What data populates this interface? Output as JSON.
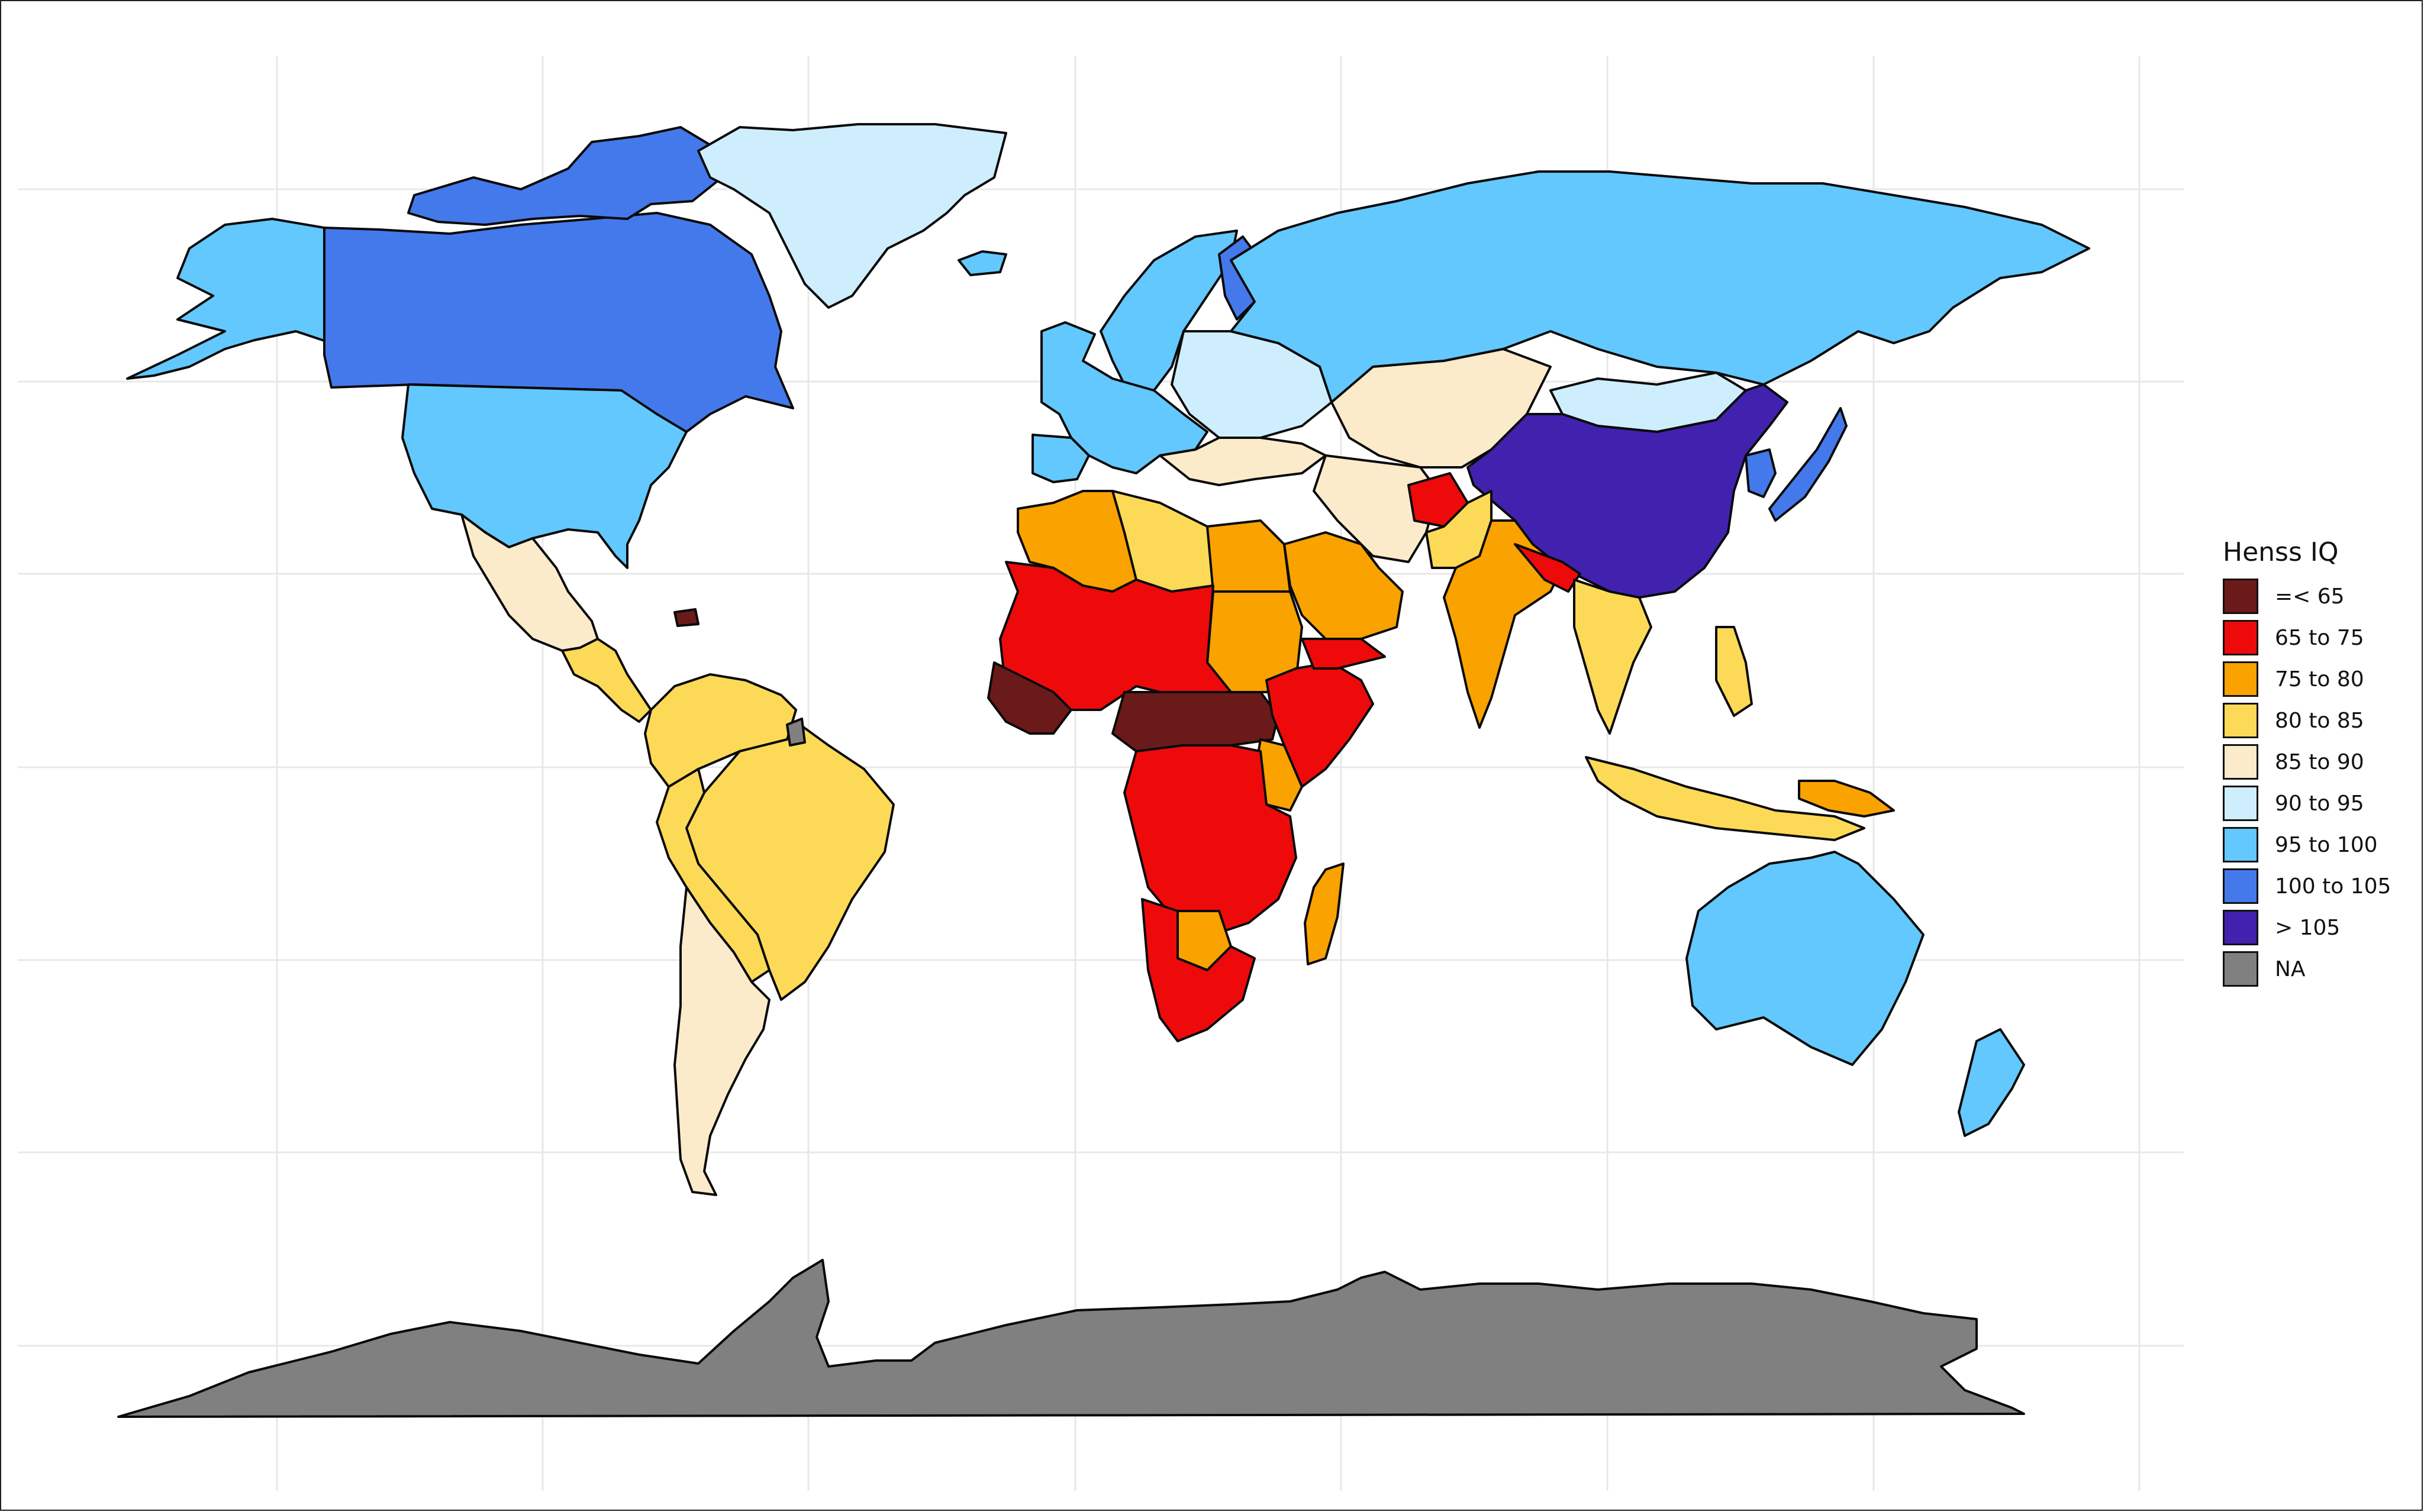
{
  "legend": {
    "title": "Henss IQ",
    "items": [
      {
        "label": "=< 65",
        "color": "#6B1A1A"
      },
      {
        "label": "65 to 75",
        "color": "#EE0A0A"
      },
      {
        "label": "75 to 80",
        "color": "#F9A200"
      },
      {
        "label": "80 to 85",
        "color": "#FCDA57"
      },
      {
        "label": "85 to 90",
        "color": "#FCEBCB"
      },
      {
        "label": "90 to 95",
        "color": "#CFEEFD"
      },
      {
        "label": "95 to 100",
        "color": "#62C8FD"
      },
      {
        "label": "100 to 105",
        "color": "#4479EB"
      },
      {
        "label": "> 105",
        "color": "#4122AE"
      },
      {
        "label": "NA",
        "color": "#808080"
      }
    ]
  },
  "regions": [
    {
      "name": "alaska",
      "class": "95 to 100"
    },
    {
      "name": "canada",
      "class": "100 to 105"
    },
    {
      "name": "canadian-arctic-islands",
      "class": "100 to 105"
    },
    {
      "name": "greenland",
      "class": "90 to 95"
    },
    {
      "name": "united-states",
      "class": "95 to 100"
    },
    {
      "name": "mexico",
      "class": "85 to 90"
    },
    {
      "name": "central-america",
      "class": "80 to 85"
    },
    {
      "name": "caribbean-haiti",
      "class": "=< 65"
    },
    {
      "name": "northern-south-america",
      "class": "80 to 85"
    },
    {
      "name": "brazil",
      "class": "80 to 85"
    },
    {
      "name": "bolivia-paraguay",
      "class": "80 to 85"
    },
    {
      "name": "argentina-chile",
      "class": "85 to 90"
    },
    {
      "name": "french-guiana",
      "class": "NA"
    },
    {
      "name": "iceland",
      "class": "95 to 100"
    },
    {
      "name": "scandinavia",
      "class": "95 to 100"
    },
    {
      "name": "finland",
      "class": "100 to 105"
    },
    {
      "name": "western-europe",
      "class": "95 to 100"
    },
    {
      "name": "iberia",
      "class": "95 to 100"
    },
    {
      "name": "eastern-europe",
      "class": "90 to 95"
    },
    {
      "name": "balkans-turkey",
      "class": "85 to 90"
    },
    {
      "name": "russia",
      "class": "95 to 100"
    },
    {
      "name": "kazakhstan-central-asia",
      "class": "85 to 90"
    },
    {
      "name": "mongolia",
      "class": "90 to 95"
    },
    {
      "name": "china",
      "class": "> 105"
    },
    {
      "name": "korea",
      "class": "100 to 105"
    },
    {
      "name": "japan",
      "class": "100 to 105"
    },
    {
      "name": "north-africa-west",
      "class": "75 to 80"
    },
    {
      "name": "libya",
      "class": "80 to 85"
    },
    {
      "name": "egypt",
      "class": "75 to 80"
    },
    {
      "name": "sudan",
      "class": "75 to 80"
    },
    {
      "name": "sahel-west-africa",
      "class": "65 to 75"
    },
    {
      "name": "coastal-west-africa",
      "class": "=< 65"
    },
    {
      "name": "central-african-belt",
      "class": "=< 65"
    },
    {
      "name": "ethiopia-somalia",
      "class": "65 to 75"
    },
    {
      "name": "kenya",
      "class": "75 to 80"
    },
    {
      "name": "central-southern-africa",
      "class": "65 to 75"
    },
    {
      "name": "botswana",
      "class": "75 to 80"
    },
    {
      "name": "south-africa",
      "class": "65 to 75"
    },
    {
      "name": "madagascar",
      "class": "75 to 80"
    },
    {
      "name": "saudi-arabia",
      "class": "75 to 80"
    },
    {
      "name": "yemen",
      "class": "65 to 75"
    },
    {
      "name": "iran",
      "class": "85 to 90"
    },
    {
      "name": "afghanistan",
      "class": "65 to 75"
    },
    {
      "name": "pakistan",
      "class": "80 to 85"
    },
    {
      "name": "india",
      "class": "75 to 80"
    },
    {
      "name": "nepal-bangladesh",
      "class": "65 to 75"
    },
    {
      "name": "southeast-asia-mainland",
      "class": "80 to 85"
    },
    {
      "name": "indonesia",
      "class": "80 to 85"
    },
    {
      "name": "philippines",
      "class": "80 to 85"
    },
    {
      "name": "papua-new-guinea",
      "class": "75 to 80"
    },
    {
      "name": "australia",
      "class": "95 to 100"
    },
    {
      "name": "new-zealand",
      "class": "95 to 100"
    },
    {
      "name": "antarctica",
      "class": "NA"
    }
  ]
}
